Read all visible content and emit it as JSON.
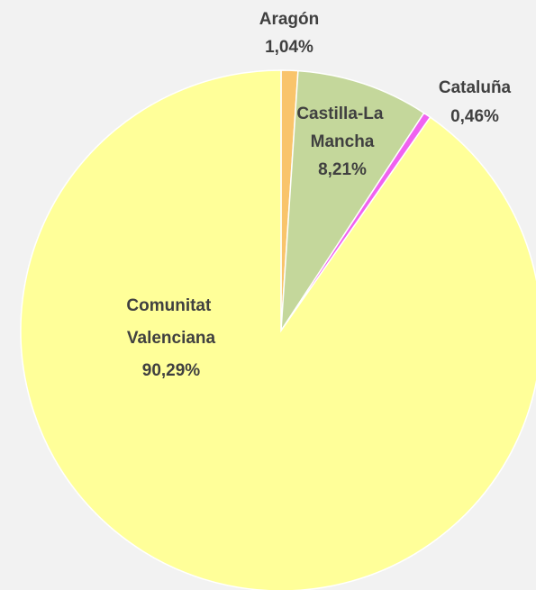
{
  "chart_data": {
    "type": "pie",
    "categories": [
      "Aragón",
      "Castilla-La Mancha",
      "Cataluña",
      "Comunitat Valenciana"
    ],
    "values": [
      1.04,
      8.21,
      0.46,
      90.29
    ],
    "value_labels": [
      "1,04%",
      "8,21%",
      "0,46%",
      "90,29%"
    ],
    "colors": [
      "#f9c46b",
      "#c4d79b",
      "#f062f0",
      "#ffff99"
    ]
  }
}
